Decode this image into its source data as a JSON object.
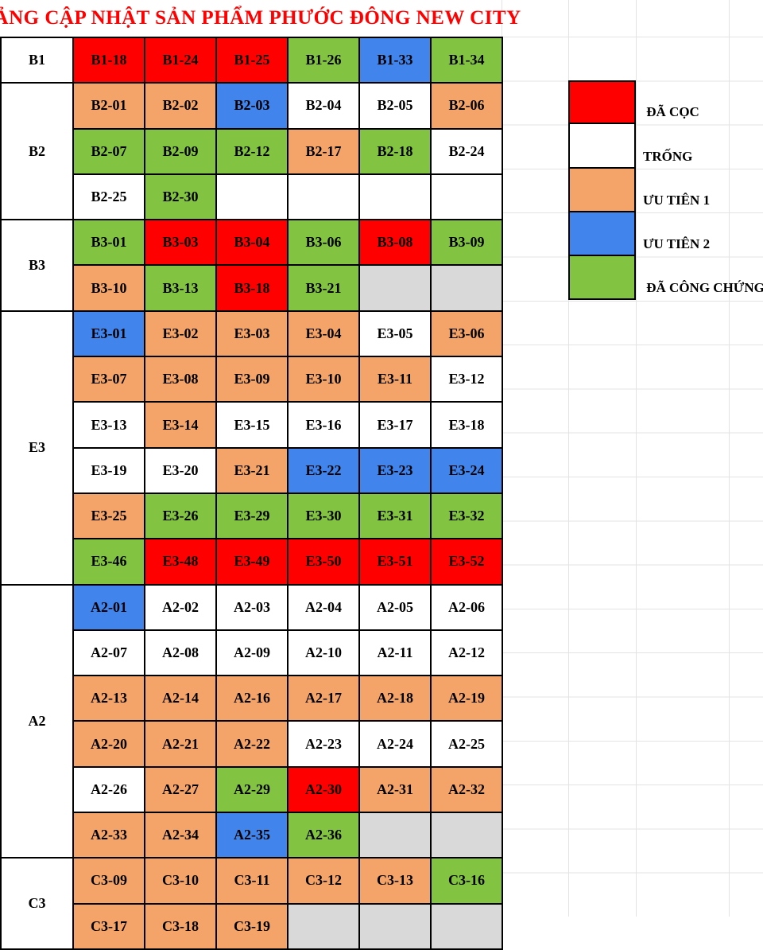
{
  "title": "BẢNG CẬP NHẬT SẢN PHẨM PHƯỚC ĐÔNG NEW CITY",
  "colors": {
    "red": "#FE0000",
    "orange": "#F4A468",
    "blue": "#4184EC",
    "green": "#82C341",
    "gray": "#D9D9D9",
    "grid_line": "#E3E3E3",
    "title_text": "#FF0000",
    "cell_border": "#000000"
  },
  "legend": {
    "items": [
      {
        "status": "da_coc",
        "label": " ĐÃ CỌC"
      },
      {
        "status": "trong",
        "label": "TRỐNG"
      },
      {
        "status": "uu_tien_1",
        "label": "ƯU TIÊN 1"
      },
      {
        "status": "uu_tien_2",
        "label": "ƯU TIÊN 2"
      },
      {
        "status": "da_cong_chung",
        "label": " ĐÃ CÔNG CHỨNG"
      }
    ]
  },
  "table": {
    "groups": [
      {
        "label": "B1",
        "rows": [
          [
            {
              "code": "B1-18",
              "status": "da_coc"
            },
            {
              "code": "B1-24",
              "status": "da_coc"
            },
            {
              "code": "B1-25",
              "status": "da_coc"
            },
            {
              "code": "B1-26",
              "status": "da_cong_chung"
            },
            {
              "code": "B1-33",
              "status": "uu_tien_2"
            },
            {
              "code": "B1-34",
              "status": "da_cong_chung"
            }
          ]
        ]
      },
      {
        "label": "B2",
        "rows": [
          [
            {
              "code": "B2-01",
              "status": "uu_tien_1"
            },
            {
              "code": "B2-02",
              "status": "uu_tien_1"
            },
            {
              "code": "B2-03",
              "status": "uu_tien_2"
            },
            {
              "code": "B2-04",
              "status": "trong"
            },
            {
              "code": "B2-05",
              "status": "trong"
            },
            {
              "code": "B2-06",
              "status": "uu_tien_1"
            }
          ],
          [
            {
              "code": "B2-07",
              "status": "da_cong_chung"
            },
            {
              "code": "B2-09",
              "status": "da_cong_chung"
            },
            {
              "code": "B2-12",
              "status": "da_cong_chung"
            },
            {
              "code": "B2-17",
              "status": "uu_tien_1"
            },
            {
              "code": "B2-18",
              "status": "da_cong_chung"
            },
            {
              "code": "B2-24",
              "status": "trong"
            }
          ],
          [
            {
              "code": "B2-25",
              "status": "trong"
            },
            {
              "code": "B2-30",
              "status": "da_cong_chung"
            },
            {
              "code": "",
              "status": "blank"
            },
            {
              "code": "",
              "status": "blank"
            },
            {
              "code": "",
              "status": "blank"
            },
            {
              "code": "",
              "status": "blank"
            }
          ]
        ]
      },
      {
        "label": "B3",
        "rows": [
          [
            {
              "code": "B3-01",
              "status": "da_cong_chung"
            },
            {
              "code": "B3-03",
              "status": "da_coc"
            },
            {
              "code": "B3-04",
              "status": "da_coc"
            },
            {
              "code": "B3-06",
              "status": "da_cong_chung"
            },
            {
              "code": "B3-08",
              "status": "da_coc"
            },
            {
              "code": "B3-09",
              "status": "da_cong_chung"
            }
          ],
          [
            {
              "code": "B3-10",
              "status": "uu_tien_1"
            },
            {
              "code": "B3-13",
              "status": "da_cong_chung"
            },
            {
              "code": "B3-18",
              "status": "da_coc"
            },
            {
              "code": "B3-21",
              "status": "da_cong_chung"
            },
            {
              "code": "",
              "status": "disabled"
            },
            {
              "code": "",
              "status": "disabled"
            }
          ]
        ]
      },
      {
        "label": "E3",
        "rows": [
          [
            {
              "code": "E3-01",
              "status": "uu_tien_2"
            },
            {
              "code": "E3-02",
              "status": "uu_tien_1"
            },
            {
              "code": "E3-03",
              "status": "uu_tien_1"
            },
            {
              "code": "E3-04",
              "status": "uu_tien_1"
            },
            {
              "code": "E3-05",
              "status": "trong"
            },
            {
              "code": "E3-06",
              "status": "uu_tien_1"
            }
          ],
          [
            {
              "code": "E3-07",
              "status": "uu_tien_1"
            },
            {
              "code": "E3-08",
              "status": "uu_tien_1"
            },
            {
              "code": "E3-09",
              "status": "uu_tien_1"
            },
            {
              "code": "E3-10",
              "status": "uu_tien_1"
            },
            {
              "code": "E3-11",
              "status": "uu_tien_1"
            },
            {
              "code": "E3-12",
              "status": "trong"
            }
          ],
          [
            {
              "code": "E3-13",
              "status": "trong"
            },
            {
              "code": "E3-14",
              "status": "uu_tien_1"
            },
            {
              "code": "E3-15",
              "status": "trong"
            },
            {
              "code": "E3-16",
              "status": "trong"
            },
            {
              "code": "E3-17",
              "status": "trong"
            },
            {
              "code": "E3-18",
              "status": "trong"
            }
          ],
          [
            {
              "code": "E3-19",
              "status": "trong"
            },
            {
              "code": "E3-20",
              "status": "trong"
            },
            {
              "code": "E3-21",
              "status": "uu_tien_1"
            },
            {
              "code": "E3-22",
              "status": "uu_tien_2"
            },
            {
              "code": "E3-23",
              "status": "uu_tien_2"
            },
            {
              "code": "E3-24",
              "status": "uu_tien_2"
            }
          ],
          [
            {
              "code": "E3-25",
              "status": "uu_tien_1"
            },
            {
              "code": "E3-26",
              "status": "da_cong_chung"
            },
            {
              "code": "E3-29",
              "status": "da_cong_chung"
            },
            {
              "code": "E3-30",
              "status": "da_cong_chung"
            },
            {
              "code": "E3-31",
              "status": "da_cong_chung"
            },
            {
              "code": "E3-32",
              "status": "da_cong_chung"
            }
          ],
          [
            {
              "code": "E3-46",
              "status": "da_cong_chung"
            },
            {
              "code": "E3-48",
              "status": "da_coc"
            },
            {
              "code": "E3-49",
              "status": "da_coc"
            },
            {
              "code": "E3-50",
              "status": "da_coc"
            },
            {
              "code": "E3-51",
              "status": "da_coc"
            },
            {
              "code": "E3-52",
              "status": "da_coc"
            }
          ]
        ]
      },
      {
        "label": "A2",
        "rows": [
          [
            {
              "code": "A2-01",
              "status": "uu_tien_2"
            },
            {
              "code": "A2-02",
              "status": "trong"
            },
            {
              "code": "A2-03",
              "status": "trong"
            },
            {
              "code": "A2-04",
              "status": "trong"
            },
            {
              "code": "A2-05",
              "status": "trong"
            },
            {
              "code": "A2-06",
              "status": "trong"
            }
          ],
          [
            {
              "code": "A2-07",
              "status": "trong"
            },
            {
              "code": "A2-08",
              "status": "trong"
            },
            {
              "code": "A2-09",
              "status": "trong"
            },
            {
              "code": "A2-10",
              "status": "trong"
            },
            {
              "code": "A2-11",
              "status": "trong"
            },
            {
              "code": "A2-12",
              "status": "trong"
            }
          ],
          [
            {
              "code": "A2-13",
              "status": "uu_tien_1"
            },
            {
              "code": "A2-14",
              "status": "uu_tien_1"
            },
            {
              "code": "A2-16",
              "status": "uu_tien_1"
            },
            {
              "code": "A2-17",
              "status": "uu_tien_1"
            },
            {
              "code": "A2-18",
              "status": "uu_tien_1"
            },
            {
              "code": "A2-19",
              "status": "uu_tien_1"
            }
          ],
          [
            {
              "code": "A2-20",
              "status": "uu_tien_1"
            },
            {
              "code": "A2-21",
              "status": "uu_tien_1"
            },
            {
              "code": "A2-22",
              "status": "uu_tien_1"
            },
            {
              "code": "A2-23",
              "status": "trong"
            },
            {
              "code": "A2-24",
              "status": "trong"
            },
            {
              "code": "A2-25",
              "status": "trong"
            }
          ],
          [
            {
              "code": "A2-26",
              "status": "trong"
            },
            {
              "code": "A2-27",
              "status": "uu_tien_1"
            },
            {
              "code": "A2-29",
              "status": "da_cong_chung"
            },
            {
              "code": "A2-30",
              "status": "da_coc"
            },
            {
              "code": "A2-31",
              "status": "uu_tien_1"
            },
            {
              "code": "A2-32",
              "status": "uu_tien_1"
            }
          ],
          [
            {
              "code": "A2-33",
              "status": "uu_tien_1"
            },
            {
              "code": "A2-34",
              "status": "uu_tien_1"
            },
            {
              "code": "A2-35",
              "status": "uu_tien_2"
            },
            {
              "code": "A2-36",
              "status": "da_cong_chung"
            },
            {
              "code": "",
              "status": "disabled"
            },
            {
              "code": "",
              "status": "disabled"
            }
          ]
        ]
      },
      {
        "label": "C3",
        "rows": [
          [
            {
              "code": "C3-09",
              "status": "uu_tien_1"
            },
            {
              "code": "C3-10",
              "status": "uu_tien_1"
            },
            {
              "code": "C3-11",
              "status": "uu_tien_1"
            },
            {
              "code": "C3-12",
              "status": "uu_tien_1"
            },
            {
              "code": "C3-13",
              "status": "uu_tien_1"
            },
            {
              "code": "C3-16",
              "status": "da_cong_chung"
            }
          ],
          [
            {
              "code": "C3-17",
              "status": "uu_tien_1"
            },
            {
              "code": "C3-18",
              "status": "uu_tien_1"
            },
            {
              "code": "C3-19",
              "status": "uu_tien_1"
            },
            {
              "code": "",
              "status": "disabled"
            },
            {
              "code": "",
              "status": "disabled"
            },
            {
              "code": "",
              "status": "disabled"
            }
          ]
        ]
      }
    ]
  }
}
